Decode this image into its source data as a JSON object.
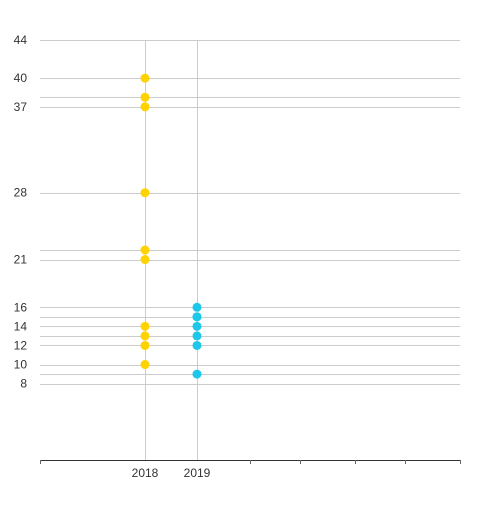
{
  "chart_data": {
    "type": "scatter",
    "title": "",
    "xlabel": "",
    "ylabel": "",
    "categories": [
      "2018",
      "2019"
    ],
    "ylim": [
      0,
      44
    ],
    "y_ticks": [
      44,
      40,
      37,
      28,
      21,
      16,
      14,
      12,
      10,
      8
    ],
    "series": [
      {
        "category": "2018",
        "color": "#FFD200",
        "values": [
          40,
          38,
          37,
          28,
          22,
          21,
          14,
          13,
          12,
          10
        ]
      },
      {
        "category": "2019",
        "color": "#1DC7EA",
        "values": [
          16,
          15,
          15,
          14,
          13,
          12,
          9
        ]
      }
    ],
    "grid": true,
    "legend": "none"
  }
}
